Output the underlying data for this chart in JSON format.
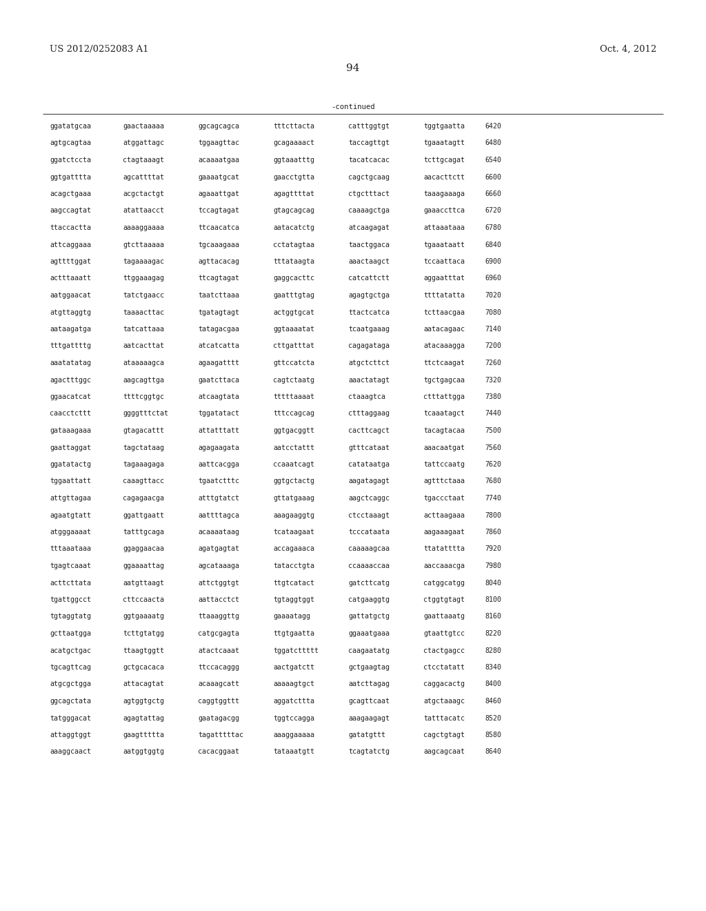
{
  "header_left": "US 2012/0252083 A1",
  "header_right": "Oct. 4, 2012",
  "page_number": "94",
  "continued_label": "-continued",
  "background_color": "#ffffff",
  "text_color": "#231f20",
  "font_size": 7.2,
  "header_font_size": 9.5,
  "page_num_font_size": 11,
  "sequences": [
    [
      "ggatatgcaa",
      "gaactaaaaa",
      "ggcagcagca",
      "tttcttacta",
      "catttggtgt",
      "tggtgaatta",
      "6420"
    ],
    [
      "agtgcagtaa",
      "atggattagc",
      "tggaagttac",
      "gcagaaaact",
      "taccagttgt",
      "tgaaatagtt",
      "6480"
    ],
    [
      "ggatctccta",
      "ctagtaaagt",
      "acaaaatgaa",
      "ggtaaatttg",
      "tacatcacac",
      "tcttgcagat",
      "6540"
    ],
    [
      "ggtgatttta",
      "agcattttat",
      "gaaaatgcat",
      "gaacctgtta",
      "cagctgcaag",
      "aacacttctt",
      "6600"
    ],
    [
      "acagctgaaa",
      "acgctactgt",
      "agaaattgat",
      "agagttttat",
      "ctgctttact",
      "taaagaaaga",
      "6660"
    ],
    [
      "aagccagtat",
      "atattaacct",
      "tccagtagat",
      "gtagcagcag",
      "caaaagctga",
      "gaaaccttca",
      "6720"
    ],
    [
      "ttaccactta",
      "aaaaggaaaa",
      "ttcaacatca",
      "aatacatctg",
      "atcaagagat",
      "attaaataaa",
      "6780"
    ],
    [
      "attcaggaaa",
      "gtcttaaaaa",
      "tgcaaagaaa",
      "cctatagtaa",
      "taactggaca",
      "tgaaataatt",
      "6840"
    ],
    [
      "agttttggat",
      "tagaaaagac",
      "agttacacag",
      "tttataagta",
      "aaactaagct",
      "tccaattaca",
      "6900"
    ],
    [
      "actttaaatt",
      "ttggaaagag",
      "ttcagtagat",
      "gaggcacttc",
      "catcattctt",
      "aggaatttat",
      "6960"
    ],
    [
      "aatggaacat",
      "tatctgaacc",
      "taatcttaaa",
      "gaatttgtag",
      "agagtgctga",
      "ttttatatta",
      "7020"
    ],
    [
      "atgttaggtg",
      "taaaacttac",
      "tgatagtagt",
      "actggtgcat",
      "ttactcatca",
      "tcttaacgaa",
      "7080"
    ],
    [
      "aataagatga",
      "tatcattaaa",
      "tatagacgaa",
      "ggtaaaatat",
      "tcaatgaaag",
      "aatacagaac",
      "7140"
    ],
    [
      "tttgattttg",
      "aatcacttat",
      "atcatcatta",
      "cttgatttat",
      "cagagataga",
      "atacaaagga",
      "7200"
    ],
    [
      "aaatatatag",
      "ataaaaagca",
      "agaagatttt",
      "gttccatcta",
      "atgctcttct",
      "ttctcaagat",
      "7260"
    ],
    [
      "agactttggc",
      "aagcagttga",
      "gaatcttaca",
      "cagtctaatg",
      "aaactatagt",
      "tgctgagcaa",
      "7320"
    ],
    [
      "ggaacatcat",
      "ttttcggtgc",
      "atcaagtata",
      "tttttaaaat",
      "ctaaagtca",
      "ctttattgga",
      "7380"
    ],
    [
      "caacctcttt",
      "ggggtttctat",
      "tggatatact",
      "tttccagcag",
      "ctttaggaag",
      "tcaaatagct",
      "7440"
    ],
    [
      "gataaagaaa",
      "gtagacattt",
      "attatttatt",
      "ggtgacggtt",
      "cacttcagct",
      "tacagtacaa",
      "7500"
    ],
    [
      "gaattaggat",
      "tagctataag",
      "agagaagata",
      "aatcctattt",
      "gtttcataat",
      "aaacaatgat",
      "7560"
    ],
    [
      "ggatatactg",
      "tagaaagaga",
      "aattcacgga",
      "ccaaatcagt",
      "catataatga",
      "tattccaatg",
      "7620"
    ],
    [
      "tggaattatt",
      "caaagttacc",
      "tgaatctttc",
      "ggtgctactg",
      "aagatagagt",
      "agtttctaaa",
      "7680"
    ],
    [
      "attgttagaa",
      "cagagaacga",
      "atttgtatct",
      "gttatgaaag",
      "aagctcaggc",
      "tgaccctaat",
      "7740"
    ],
    [
      "agaatgtatt",
      "ggattgaatt",
      "aattttagca",
      "aaagaaggtg",
      "ctcctaaagt",
      "acttaagaaa",
      "7800"
    ],
    [
      "atgggaaaat",
      "tatttgcaga",
      "acaaaataag",
      "tcataagaat",
      "tcccataata",
      "aagaaagaat",
      "7860"
    ],
    [
      "tttaaataaa",
      "ggaggaacaa",
      "agatgagtat",
      "accagaaaca",
      "caaaaagcaa",
      "ttatatttta",
      "7920"
    ],
    [
      "tgagtcaaat",
      "ggaaaattag",
      "agcataaaga",
      "tatacctgta",
      "ccaaaaccaa",
      "aaccaaacga",
      "7980"
    ],
    [
      "acttcttata",
      "aatgttaagt",
      "attctggtgt",
      "ttgtcatact",
      "gatcttcatg",
      "catggcatgg",
      "8040"
    ],
    [
      "tgattggcct",
      "cttccaacta",
      "aattacctct",
      "tgtaggtggt",
      "catgaaggtg",
      "ctggtgtagt",
      "8100"
    ],
    [
      "tgtaggtatg",
      "ggtgaaaatg",
      "ttaaaggttg",
      "gaaaatagg",
      "gattatgctg",
      "gaattaaatg",
      "8160"
    ],
    [
      "gcttaatgga",
      "tcttgtatgg",
      "catgcgagta",
      "ttgtgaatta",
      "ggaaatgaaa",
      "gtaattgtcc",
      "8220"
    ],
    [
      "acatgctgac",
      "ttaagtggtt",
      "atactcaaat",
      "tggatcttttt",
      "caagaatatg",
      "ctactgagcc",
      "8280"
    ],
    [
      "tgcagttcag",
      "gctgcacaca",
      "ttccacaggg",
      "aactgatctt",
      "gctgaagtag",
      "ctcctatatt",
      "8340"
    ],
    [
      "atgcgctgga",
      "attacagtat",
      "acaaagcatt",
      "aaaaagtgct",
      "aatcttagag",
      "caggacactg",
      "8400"
    ],
    [
      "ggcagctata",
      "agtggtgctg",
      "caggtggttt",
      "aggatcttta",
      "gcagttcaat",
      "atgctaaagc",
      "8460"
    ],
    [
      "tatgggacat",
      "agagtattag",
      "gaatagacgg",
      "tggtccagga",
      "aaagaagagt",
      "tatttacatc",
      "8520"
    ],
    [
      "attaggtggt",
      "gaagttttta",
      "tagatttttac",
      "aaaggaaaaa",
      "gatatgttt",
      "cagctgtagt",
      "8580"
    ],
    [
      "aaaggcaact",
      "aatggtggtg",
      "cacacggaat",
      "tataaatgtt",
      "tcagtatctg",
      "aagcagcaat",
      "8640"
    ]
  ]
}
